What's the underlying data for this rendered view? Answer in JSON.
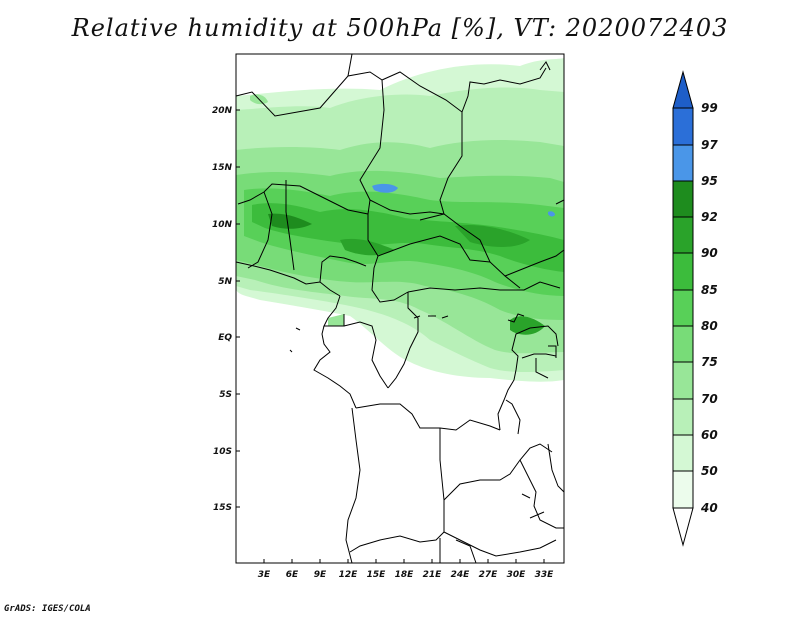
{
  "title": "Relative humidity at 500hPa [%], VT: 2020072403",
  "credit": "GrADS: IGES/COLA",
  "map": {
    "lon_range": [
      0,
      36
    ],
    "lat_range": [
      -20,
      25
    ],
    "lat_ticks": [
      "20N",
      "15N",
      "10N",
      "5N",
      "EQ",
      "5S",
      "10S",
      "15S"
    ],
    "lon_ticks": [
      "3E",
      "6E",
      "9E",
      "12E",
      "15E",
      "18E",
      "21E",
      "24E",
      "27E",
      "30E",
      "33E"
    ]
  },
  "colorbar": {
    "labels": [
      "99",
      "97",
      "95",
      "92",
      "90",
      "85",
      "80",
      "75",
      "70",
      "60",
      "50",
      "40"
    ],
    "colors": {
      "above_99": "#1e5ec8",
      "97_99": "#2b6fd8",
      "95_97": "#4a96e8",
      "92_95": "#1e8c1e",
      "90_92": "#2aa32a",
      "85_90": "#3cbc3c",
      "80_85": "#58d058",
      "75_80": "#78dc78",
      "70_75": "#98e698",
      "60_70": "#b8f0b8",
      "50_60": "#d4f8d4",
      "40_50": "#ecfcec",
      "below_40": "#ffffff"
    }
  }
}
